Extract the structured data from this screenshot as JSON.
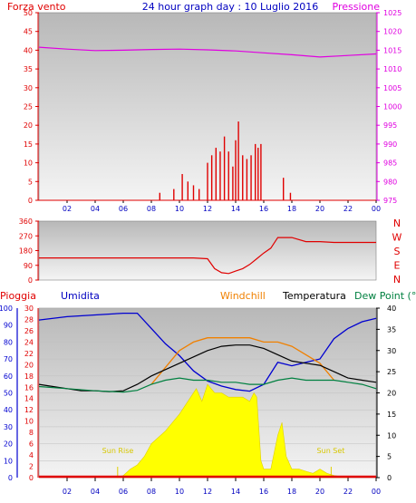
{
  "header": {
    "left": "Forza vento",
    "center": "24 hour graph day : 10 Luglio 2016",
    "right": "Pressione"
  },
  "mid_panel": {
    "y_ticks": [
      "360",
      "270",
      "180",
      "90",
      "0"
    ],
    "directions": [
      "N",
      "W",
      "S",
      "E",
      "N"
    ]
  },
  "bottom_header": {
    "pioggia": "Pioggia",
    "umidita": "Umidita",
    "windchill": "Windchill",
    "temperatura": "Temperatura",
    "dewpoint": "Dew Point (°C"
  },
  "annotations": {
    "sunrise": "Sun Rise",
    "sunset": "Sun Set"
  },
  "colors": {
    "wind": "#e00000",
    "pressure": "#e000e0",
    "humidity": "#0000d0",
    "windchill": "#f08000",
    "temperature": "#000000",
    "dewpoint": "#008040",
    "solar": "#ffff00",
    "rain": "#e00000",
    "plot_bg": "#d4d4d4"
  },
  "chart_data": [
    {
      "type": "line",
      "title": "24 hour graph day : 10 Luglio 2016",
      "x_ticks": [
        "02",
        "04",
        "06",
        "08",
        "10",
        "12",
        "14",
        "16",
        "18",
        "20",
        "22",
        "00"
      ],
      "left_axis": {
        "label": "Forza vento",
        "ticks": [
          0,
          5,
          10,
          15,
          20,
          25,
          30,
          35,
          40,
          45,
          50
        ],
        "ylim": [
          0,
          50
        ]
      },
      "right_axis": {
        "label": "Pressione",
        "ticks": [
          975,
          980,
          985,
          990,
          995,
          1000,
          1005,
          1010,
          1015,
          1020,
          1025
        ],
        "ylim": [
          975,
          1025
        ]
      },
      "series": [
        {
          "name": "Pressione",
          "axis": "right",
          "x": [
            0,
            2,
            4,
            6,
            8,
            10,
            12,
            14,
            16,
            18,
            20,
            22,
            24
          ],
          "values": [
            1015.8,
            1015.3,
            1014.9,
            1015.0,
            1015.2,
            1015.3,
            1015.1,
            1014.8,
            1014.3,
            1013.8,
            1013.2,
            1013.6,
            1014.0
          ]
        },
        {
          "name": "Forza vento",
          "axis": "left",
          "bars": true,
          "x": [
            8.6,
            9.6,
            10.2,
            10.6,
            11.0,
            11.4,
            12.0,
            12.3,
            12.6,
            12.9,
            13.2,
            13.5,
            13.8,
            14.0,
            14.2,
            14.5,
            14.8,
            15.1,
            15.4,
            15.6,
            15.8,
            17.4,
            17.9
          ],
          "values": [
            2,
            3,
            7,
            5,
            4,
            3,
            10,
            12,
            14,
            13,
            17,
            13,
            9,
            16,
            21,
            12,
            11,
            12,
            15,
            14,
            15,
            6,
            2
          ]
        }
      ]
    },
    {
      "type": "line",
      "y_ticks": [
        0,
        90,
        180,
        270,
        360
      ],
      "ylim": [
        0,
        360
      ],
      "series": [
        {
          "name": "direction",
          "x": [
            0,
            1,
            2,
            3,
            4,
            5,
            6,
            7,
            8,
            9,
            10,
            11,
            12,
            12.5,
            13,
            13.5,
            14,
            14.5,
            15,
            15.5,
            16,
            16.5,
            17,
            18,
            19,
            20,
            21,
            22,
            23,
            24
          ],
          "values": [
            135,
            135,
            135,
            135,
            135,
            135,
            135,
            135,
            135,
            135,
            135,
            135,
            130,
            70,
            45,
            40,
            55,
            70,
            95,
            130,
            165,
            195,
            260,
            260,
            235,
            235,
            230,
            230,
            230,
            230
          ]
        }
      ]
    },
    {
      "type": "line",
      "left_axis": {
        "label": "Umidita",
        "ticks": [
          0,
          10,
          20,
          30,
          40,
          50,
          60,
          70,
          80,
          90,
          100
        ],
        "ylim": [
          0,
          100
        ]
      },
      "left_axis2": {
        "label": "Pioggia",
        "ticks": [
          0,
          2,
          4,
          6,
          8,
          10,
          12,
          14,
          16,
          18,
          20,
          22,
          24,
          26,
          28,
          30
        ]
      },
      "right_axis": {
        "ticks": [
          0,
          5,
          10,
          15,
          20,
          25,
          30,
          35,
          40
        ],
        "ylim": [
          0,
          40
        ]
      },
      "series": [
        {
          "name": "Umidita",
          "axis": "left",
          "x": [
            0,
            2,
            4,
            6,
            7,
            8,
            9,
            10,
            11,
            12,
            13,
            14,
            15,
            16,
            17,
            18,
            19,
            20,
            21,
            22,
            23,
            24
          ],
          "values": [
            93,
            95,
            96,
            97,
            97,
            88,
            79,
            72,
            63,
            57,
            54,
            52,
            51,
            55,
            68,
            66,
            68,
            70,
            82,
            88,
            92,
            94
          ]
        },
        {
          "name": "Windchill",
          "axis": "right",
          "x": [
            8,
            9,
            10,
            11,
            12,
            13,
            14,
            15,
            16,
            17,
            18,
            19,
            20,
            21
          ],
          "values": [
            22,
            26,
            30,
            32,
            33,
            33,
            33,
            33,
            32,
            32,
            31,
            29,
            27,
            23
          ]
        },
        {
          "name": "Temperatura",
          "axis": "right",
          "x": [
            0,
            1,
            2,
            3,
            4,
            5,
            6,
            7,
            8,
            9,
            10,
            11,
            12,
            13,
            14,
            15,
            16,
            17,
            18,
            19,
            20,
            21,
            22,
            23,
            24
          ],
          "values": [
            22,
            21.5,
            21,
            20.5,
            20.5,
            20.3,
            20.5,
            22,
            24,
            25.5,
            27,
            28.5,
            30,
            31,
            31.3,
            31.3,
            30.5,
            29,
            27.5,
            27,
            26.5,
            25,
            23.5,
            23,
            22.5
          ]
        },
        {
          "name": "Dew Point",
          "axis": "right",
          "x": [
            0,
            2,
            4,
            6,
            7,
            8,
            9,
            10,
            11,
            12,
            13,
            14,
            15,
            16,
            17,
            18,
            19,
            20,
            21,
            22,
            23,
            24
          ],
          "values": [
            21.5,
            21,
            20.5,
            20.2,
            20.6,
            22,
            23,
            23.5,
            23,
            23,
            22.5,
            22.5,
            22,
            22,
            23,
            23.5,
            23,
            23,
            23,
            22.5,
            22,
            21
          ]
        },
        {
          "name": "solar",
          "x": [
            5.5,
            6,
            6.5,
            7,
            7.5,
            8,
            9,
            10,
            10.8,
            11.2,
            11.6,
            12,
            12.5,
            13,
            13.5,
            14,
            14.5,
            15,
            15.3,
            15.5,
            15.8,
            16,
            16.5,
            17,
            17.3,
            17.6,
            18,
            18.5,
            19,
            19.5,
            20,
            20.5,
            21,
            22
          ],
          "values": [
            0,
            0.5,
            2,
            3,
            5,
            8,
            11,
            15,
            19,
            21,
            18,
            22,
            20,
            20,
            19,
            19,
            19,
            18,
            20,
            19,
            4,
            2,
            2,
            10,
            13,
            5,
            2,
            2,
            1.5,
            1,
            2,
            1,
            0.5,
            0
          ]
        }
      ]
    }
  ]
}
